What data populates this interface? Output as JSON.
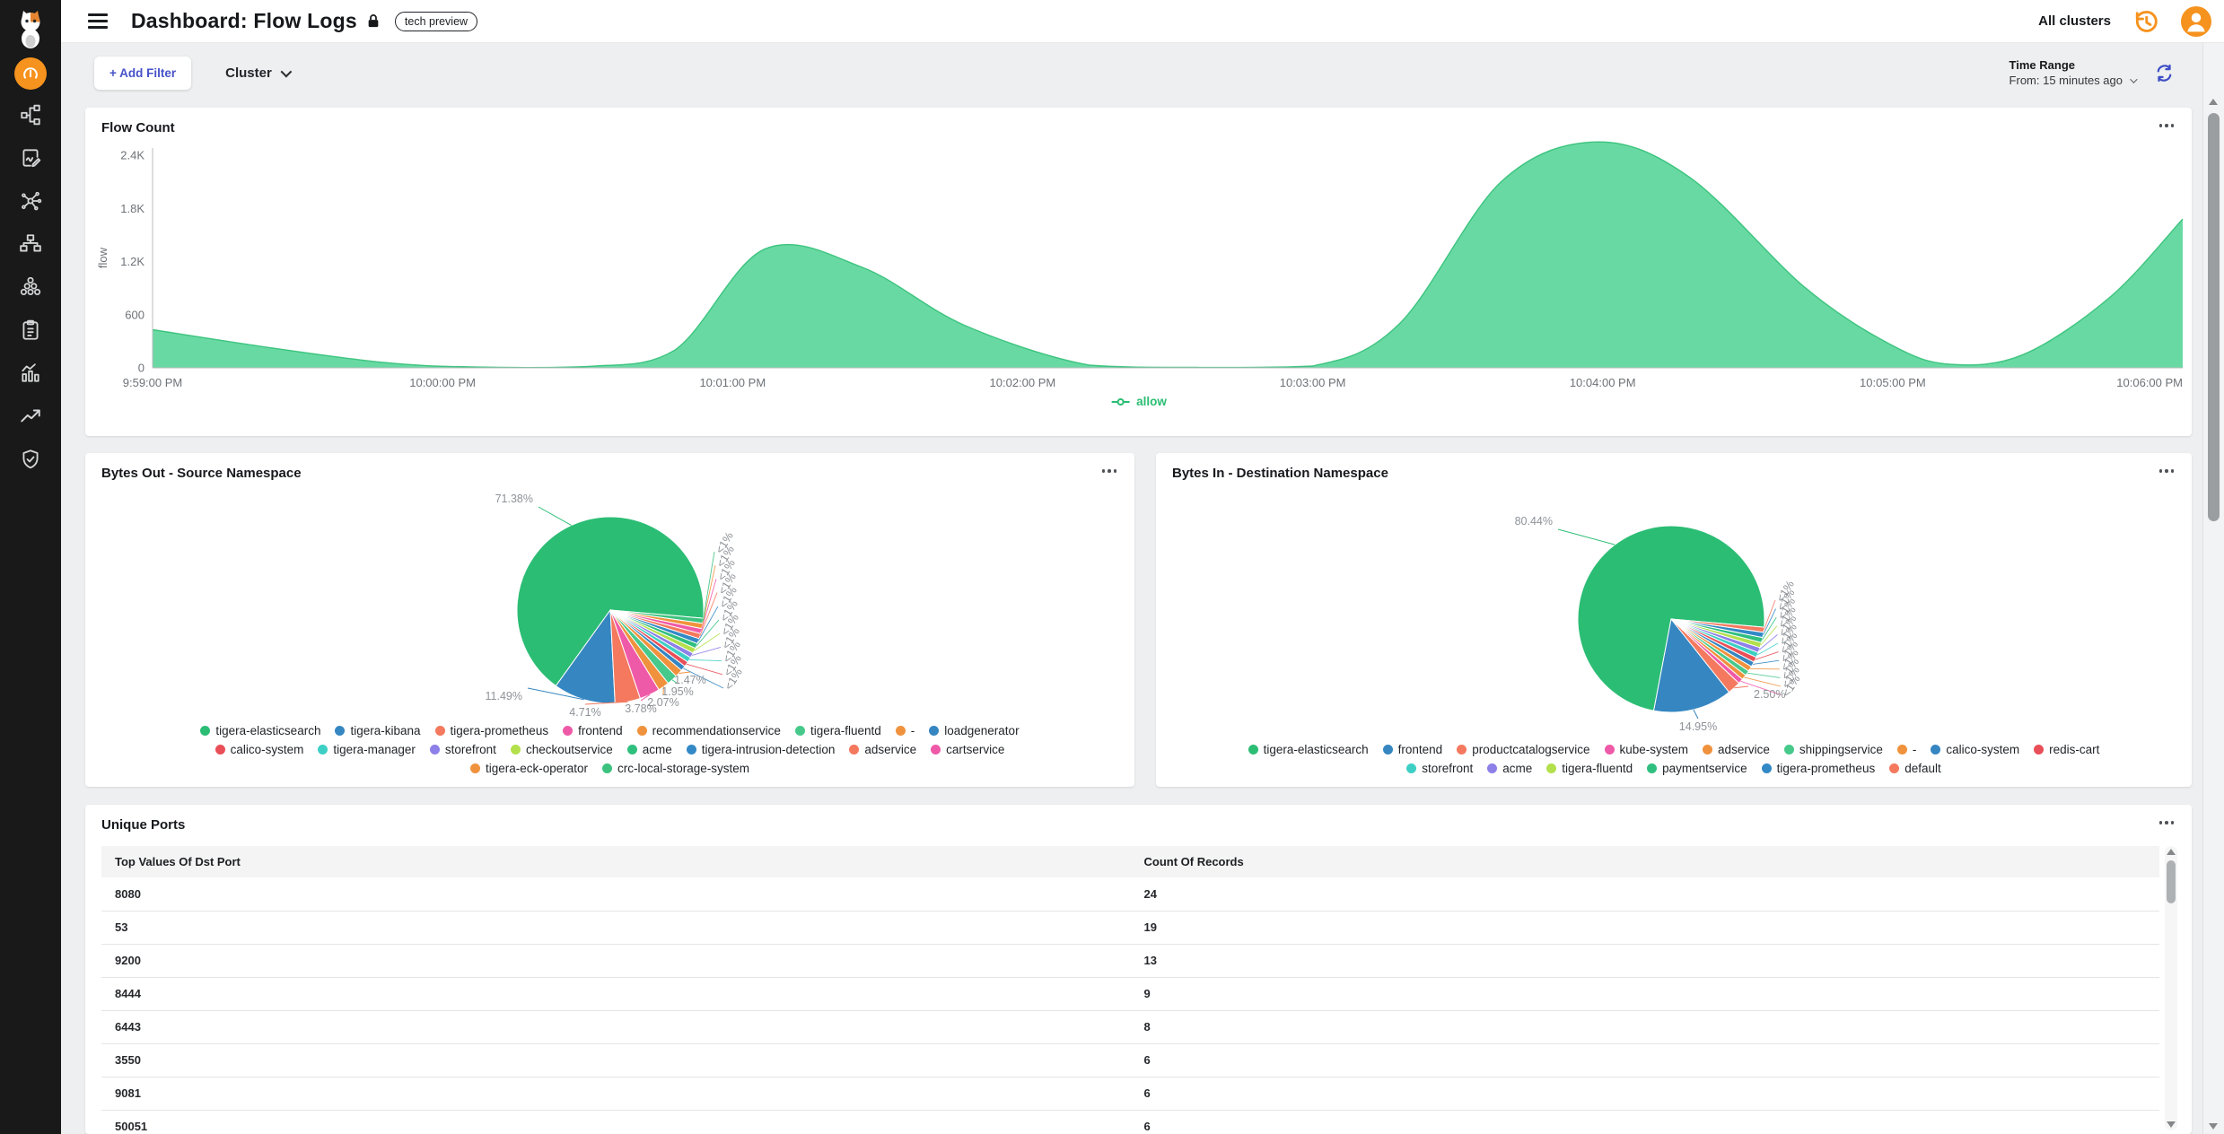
{
  "header": {
    "title": "Dashboard: Flow Logs",
    "badge": "tech preview",
    "clusters_label": "All clusters"
  },
  "sidebar": {
    "items": [
      {
        "icon": "calico-logo"
      },
      {
        "icon": "gauge",
        "active": true
      },
      {
        "icon": "topology"
      },
      {
        "icon": "document-edit"
      },
      {
        "icon": "share-nodes"
      },
      {
        "icon": "sitemap"
      },
      {
        "icon": "honeycomb"
      },
      {
        "icon": "clipboard"
      },
      {
        "icon": "bar-chart"
      },
      {
        "icon": "trend-up"
      },
      {
        "icon": "shield-check"
      }
    ]
  },
  "filters": {
    "add_filter_label": "+ Add Filter",
    "cluster_label": "Cluster",
    "time_range_title": "Time Range",
    "time_range_value": "From: 15 minutes ago"
  },
  "colors": {
    "accent_orange": "#f6921e",
    "accent_blue": "#3d4ec6",
    "allow_green": "#2abd72",
    "area_fill": "#69d9a3"
  },
  "chart_data": [
    {
      "id": "flow",
      "type": "area",
      "title": "Flow Count",
      "ylabel": "flow",
      "ylim": [
        0,
        2600
      ],
      "yticks": [
        {
          "label": "0",
          "value": 0
        },
        {
          "label": "600",
          "value": 600
        },
        {
          "label": "1.2K",
          "value": 1200
        },
        {
          "label": "1.8K",
          "value": 1800
        },
        {
          "label": "2.4K",
          "value": 2400
        }
      ],
      "xticks": [
        "9:59:00 PM",
        "10:00:00 PM",
        "10:01:00 PM",
        "10:02:00 PM",
        "10:03:00 PM",
        "10:04:00 PM",
        "10:05:00 PM",
        "10:06:00 PM"
      ],
      "series": [
        {
          "name": "allow",
          "color": "#2abd72",
          "fill": "#69d9a3",
          "points": [
            [
              0,
              430
            ],
            [
              0.4,
              230
            ],
            [
              0.8,
              60
            ],
            [
              1.1,
              10
            ],
            [
              1.5,
              15
            ],
            [
              1.8,
              200
            ],
            [
              2.11,
              1340
            ],
            [
              2.45,
              1130
            ],
            [
              2.8,
              480
            ],
            [
              3.23,
              30
            ],
            [
              3.6,
              5
            ],
            [
              4.0,
              20
            ],
            [
              4.3,
              500
            ],
            [
              4.65,
              2100
            ],
            [
              4.98,
              2550
            ],
            [
              5.3,
              2150
            ],
            [
              5.7,
              900
            ],
            [
              6.0,
              250
            ],
            [
              6.2,
              40
            ],
            [
              6.45,
              150
            ],
            [
              6.75,
              800
            ],
            [
              7,
              1680
            ]
          ]
        }
      ]
    },
    {
      "id": "bytes_out",
      "type": "pie",
      "title": "Bytes Out - Source Namespace",
      "slices": [
        {
          "label": "tigera-elasticsearch",
          "pct": 71.38,
          "display": "71.38%",
          "color": "#2bbd74"
        },
        {
          "label": "tigera-kibana",
          "pct": 11.49,
          "display": "11.49%",
          "color": "#3586c1"
        },
        {
          "label": "tigera-prometheus",
          "pct": 4.71,
          "display": "4.71%",
          "color": "#f4795e"
        },
        {
          "label": "frontend",
          "pct": 3.78,
          "display": "3.78%",
          "color": "#ef5aa8"
        },
        {
          "label": "recommendationservice",
          "pct": 2.07,
          "display": "2.07%",
          "color": "#f0923d"
        },
        {
          "label": "tigera-fluentd",
          "pct": 1.95,
          "display": "1.95%",
          "color": "#47c98b"
        },
        {
          "label": "-",
          "pct": 1.47,
          "display": "1.47%",
          "color": "#f0923d"
        },
        {
          "label": "loadgenerator",
          "pct": 0.4,
          "display": "<1%",
          "color": "#3586c1"
        },
        {
          "label": "calico-system",
          "pct": 0.38,
          "display": "<1%",
          "color": "#e94f58"
        },
        {
          "label": "tigera-manager",
          "pct": 0.35,
          "display": "<1%",
          "color": "#3ecfc4"
        },
        {
          "label": "storefront",
          "pct": 0.33,
          "display": "<1%",
          "color": "#8d80e8"
        },
        {
          "label": "checkoutservice",
          "pct": 0.3,
          "display": "<1%",
          "color": "#b3e04b"
        },
        {
          "label": "acme",
          "pct": 0.28,
          "display": "<1%",
          "color": "#2fbf7f"
        },
        {
          "label": "tigera-intrusion-detection",
          "pct": 0.26,
          "display": "<1%",
          "color": "#3389c6"
        },
        {
          "label": "adservice",
          "pct": 0.24,
          "display": "<1%",
          "color": "#f4795e"
        },
        {
          "label": "cartservice",
          "pct": 0.22,
          "display": "<1%",
          "color": "#ef5aa8"
        },
        {
          "label": "tigera-eck-operator",
          "pct": 0.2,
          "display": "<1%",
          "color": "#f0923d"
        },
        {
          "label": "crc-local-storage-system",
          "pct": 0.18,
          "display": "<1%",
          "color": "#3cc27e"
        }
      ]
    },
    {
      "id": "bytes_in",
      "type": "pie",
      "title": "Bytes In - Destination Namespace",
      "slices": [
        {
          "label": "tigera-elasticsearch",
          "pct": 80.44,
          "display": "80.44%",
          "color": "#2bbd74"
        },
        {
          "label": "frontend",
          "pct": 14.95,
          "display": "14.95%",
          "color": "#3586c1"
        },
        {
          "label": "productcatalogservice",
          "pct": 2.5,
          "display": "2.50%",
          "color": "#f4795e"
        },
        {
          "label": "kube-system",
          "pct": 0.28,
          "display": "<1%",
          "color": "#ef5aa8"
        },
        {
          "label": "adservice",
          "pct": 0.25,
          "display": "<1%",
          "color": "#f0923d"
        },
        {
          "label": "shippingservice",
          "pct": 0.22,
          "display": "<1%",
          "color": "#47c98b"
        },
        {
          "label": "-",
          "pct": 0.2,
          "display": "<1%",
          "color": "#f0923d"
        },
        {
          "label": "calico-system",
          "pct": 0.18,
          "display": "<1%",
          "color": "#3586c1"
        },
        {
          "label": "redis-cart",
          "pct": 0.17,
          "display": "<1%",
          "color": "#e94f58"
        },
        {
          "label": "storefront",
          "pct": 0.15,
          "display": "<1%",
          "color": "#3ecfc4"
        },
        {
          "label": "acme",
          "pct": 0.14,
          "display": "<1%",
          "color": "#8d80e8"
        },
        {
          "label": "tigera-fluentd",
          "pct": 0.13,
          "display": "<1%",
          "color": "#b3e04b"
        },
        {
          "label": "paymentservice",
          "pct": 0.13,
          "display": "<1%",
          "color": "#2fbf7f"
        },
        {
          "label": "tigera-prometheus",
          "pct": 0.13,
          "display": "<1%",
          "color": "#3389c6"
        },
        {
          "label": "default",
          "pct": 0.13,
          "display": "<1%",
          "color": "#f4795e"
        }
      ]
    },
    {
      "id": "unique_ports",
      "type": "table",
      "title": "Unique Ports",
      "columns": [
        "Top Values Of Dst Port",
        "Count Of Records"
      ],
      "rows": [
        [
          "8080",
          "24"
        ],
        [
          "53",
          "19"
        ],
        [
          "9200",
          "13"
        ],
        [
          "8444",
          "9"
        ],
        [
          "6443",
          "8"
        ],
        [
          "3550",
          "6"
        ],
        [
          "9081",
          "6"
        ],
        [
          "50051",
          "6"
        ]
      ]
    }
  ]
}
